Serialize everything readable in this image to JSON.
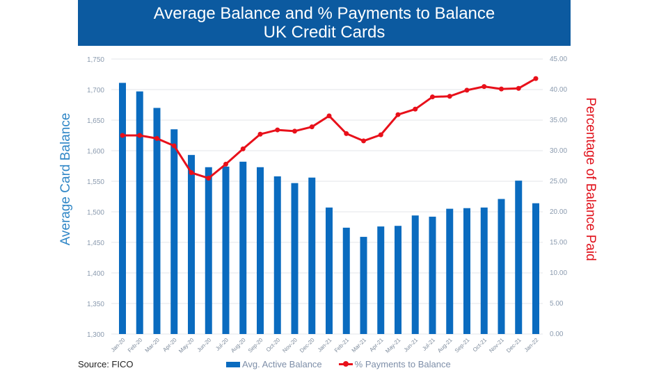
{
  "title_line1": "Average Balance and % Payments to Balance",
  "title_line2": "UK Credit Cards",
  "source": "Source: FICO",
  "colors": {
    "bar": "#0a6bbf",
    "line": "#e8101a",
    "banner": "#0c5aa0"
  },
  "chart_data": {
    "type": "bar+line",
    "ylabel": "Average Card Balance",
    "y2label": "Percentage of Balance Paid",
    "ylim": [
      1300,
      1750
    ],
    "y2lim": [
      0,
      45
    ],
    "yticks": [
      "1,300",
      "1,350",
      "1,400",
      "1,450",
      "1,500",
      "1,550",
      "1,600",
      "1,650",
      "1,700",
      "1,750"
    ],
    "y2ticks": [
      "0.00",
      "5.00",
      "10.00",
      "15.00",
      "20.00",
      "25.00",
      "30.00",
      "35.00",
      "40.00",
      "45.00"
    ],
    "grid": true,
    "legend": "bottom",
    "categories": [
      "Jan-20",
      "Feb-20",
      "Mar-20",
      "Apr-20",
      "May-20",
      "Jun-20",
      "Jul-20",
      "Aug-20",
      "Sep-20",
      "Oct-20",
      "Nov-20",
      "Dec-20",
      "Jan-21",
      "Feb-21",
      "Mar-21",
      "Apr-21",
      "May-21",
      "Jun-21",
      "Jul-21",
      "Aug-21",
      "Sep-21",
      "Oct-21",
      "Nov-21",
      "Dec-21",
      "Jan-22"
    ],
    "series": [
      {
        "name": "Avg. Active Balance",
        "type": "bar",
        "axis": "left",
        "values": [
          1711,
          1697,
          1670,
          1635,
          1593,
          1573,
          1574,
          1582,
          1573,
          1558,
          1547,
          1556,
          1507,
          1474,
          1459,
          1476,
          1477,
          1494,
          1492,
          1505,
          1506,
          1507,
          1521,
          1551,
          1514
        ]
      },
      {
        "name": "% Payments to Balance",
        "type": "line",
        "axis": "right",
        "values": [
          32.5,
          32.5,
          32.0,
          30.8,
          26.4,
          25.5,
          27.8,
          30.3,
          32.7,
          33.4,
          33.2,
          33.9,
          35.7,
          32.8,
          31.6,
          32.6,
          35.9,
          36.8,
          38.8,
          38.9,
          39.9,
          40.5,
          40.1,
          40.2,
          41.8
        ]
      }
    ]
  }
}
